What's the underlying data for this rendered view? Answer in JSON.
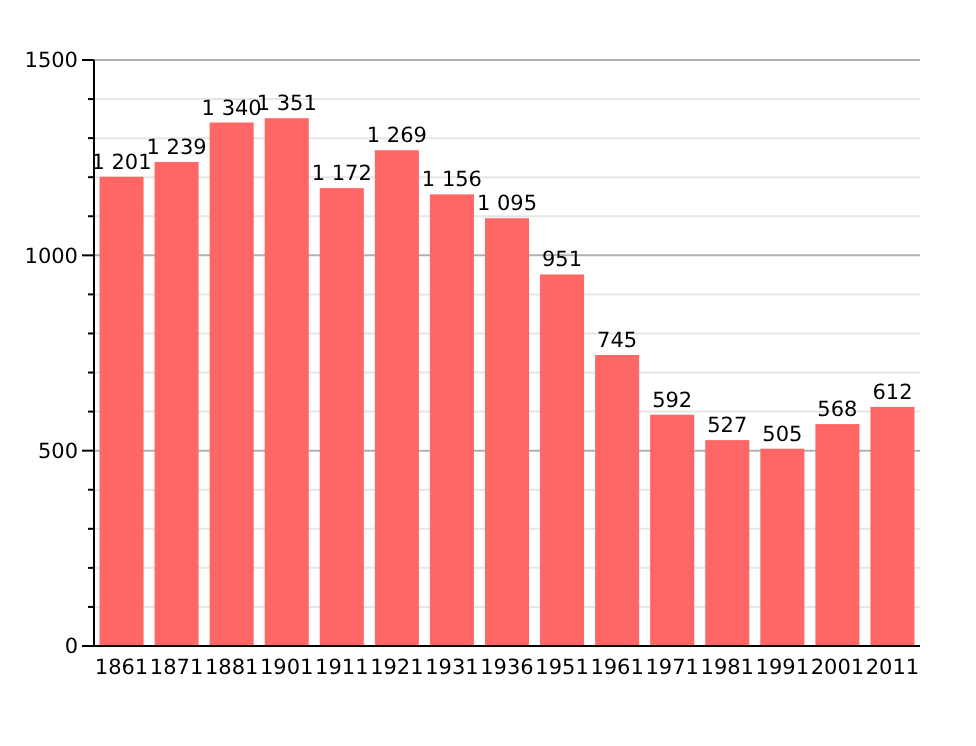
{
  "chart_data": {
    "type": "bar",
    "categories": [
      "1861",
      "1871",
      "1881",
      "1901",
      "1911",
      "1921",
      "1931",
      "1936",
      "1951",
      "1961",
      "1971",
      "1981",
      "1991",
      "2001",
      "2011"
    ],
    "values": [
      1201,
      1239,
      1340,
      1351,
      1172,
      1269,
      1156,
      1095,
      951,
      745,
      592,
      527,
      505,
      568,
      612
    ],
    "value_labels": [
      "1 201",
      "1 239",
      "1 340",
      "1 351",
      "1 172",
      "1 269",
      "1 156",
      "1 095",
      "951",
      "745",
      "592",
      "527",
      "505",
      "568",
      "612"
    ],
    "color": "#ff6666",
    "ylim": [
      0,
      1500
    ],
    "yticks": [
      0,
      {
        "value": 100,
        "label": null
      },
      {
        "value": 200,
        "label": null
      },
      {
        "value": 300,
        "label": null
      },
      {
        "value": 400,
        "label": null
      },
      500,
      {
        "value": 600,
        "label": null
      },
      {
        "value": 700,
        "label": null
      },
      {
        "value": 800,
        "label": null
      },
      {
        "value": 900,
        "label": null
      },
      1000,
      {
        "value": 1100,
        "label": null
      },
      {
        "value": 1200,
        "label": null
      },
      {
        "value": 1300,
        "label": null
      },
      {
        "value": 1400,
        "label": null
      },
      1500
    ],
    "grid": true
  }
}
